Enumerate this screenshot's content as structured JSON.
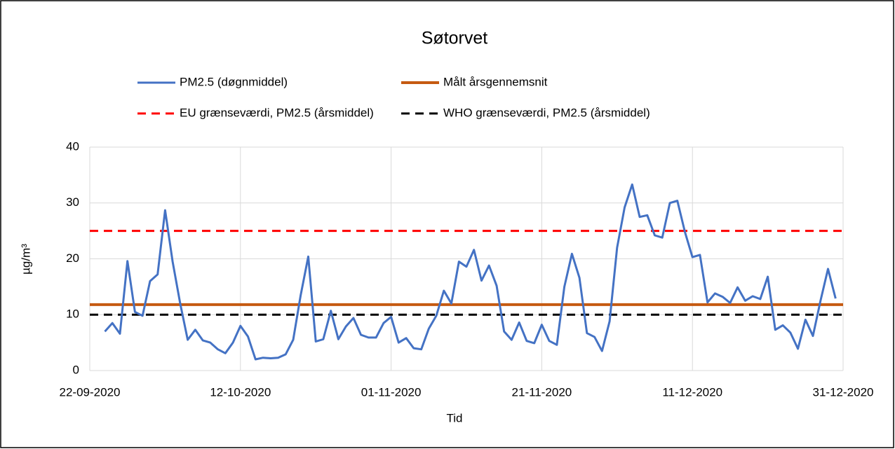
{
  "chart_data": {
    "type": "line",
    "title": "Søtorvet",
    "xlabel": "Tid",
    "ylabel": "µg/m³",
    "x": [
      "24-09-2020",
      "25-09-2020",
      "26-09-2020",
      "27-09-2020",
      "28-09-2020",
      "29-09-2020",
      "30-09-2020",
      "01-10-2020",
      "02-10-2020",
      "03-10-2020",
      "04-10-2020",
      "05-10-2020",
      "06-10-2020",
      "07-10-2020",
      "08-10-2020",
      "09-10-2020",
      "10-10-2020",
      "11-10-2020",
      "12-10-2020",
      "13-10-2020",
      "14-10-2020",
      "15-10-2020",
      "16-10-2020",
      "17-10-2020",
      "18-10-2020",
      "19-10-2020",
      "20-10-2020",
      "21-10-2020",
      "22-10-2020",
      "23-10-2020",
      "24-10-2020",
      "25-10-2020",
      "26-10-2020",
      "27-10-2020",
      "28-10-2020",
      "29-10-2020",
      "30-10-2020",
      "31-10-2020",
      "01-11-2020",
      "02-11-2020",
      "03-11-2020",
      "04-11-2020",
      "05-11-2020",
      "06-11-2020",
      "07-11-2020",
      "08-11-2020",
      "09-11-2020",
      "10-11-2020",
      "11-11-2020",
      "12-11-2020",
      "13-11-2020",
      "14-11-2020",
      "15-11-2020",
      "16-11-2020",
      "17-11-2020",
      "18-11-2020",
      "19-11-2020",
      "20-11-2020",
      "21-11-2020",
      "22-11-2020",
      "23-11-2020",
      "24-11-2020",
      "25-11-2020",
      "26-11-2020",
      "27-11-2020",
      "28-11-2020",
      "29-11-2020",
      "30-11-2020",
      "01-12-2020",
      "02-12-2020",
      "03-12-2020",
      "04-12-2020",
      "05-12-2020",
      "06-12-2020",
      "07-12-2020",
      "08-12-2020",
      "09-12-2020",
      "10-12-2020",
      "11-12-2020",
      "12-12-2020",
      "13-12-2020",
      "14-12-2020",
      "15-12-2020",
      "16-12-2020",
      "17-12-2020",
      "18-12-2020",
      "19-12-2020",
      "20-12-2020",
      "21-12-2020",
      "22-12-2020",
      "23-12-2020",
      "24-12-2020",
      "25-12-2020",
      "26-12-2020",
      "27-12-2020",
      "28-12-2020",
      "29-12-2020",
      "30-12-2020"
    ],
    "series": [
      {
        "name": "PM2.5 (døgnmiddel)",
        "color": "#4472c4",
        "values": [
          7.0,
          8.5,
          6.6,
          19.6,
          10.5,
          9.8,
          16.0,
          17.2,
          28.7,
          19.5,
          12.0,
          5.5,
          7.3,
          5.4,
          5.0,
          3.8,
          3.1,
          5.0,
          8.0,
          6.1,
          2.0,
          2.3,
          2.2,
          2.3,
          2.9,
          5.5,
          13.5,
          20.4,
          5.2,
          5.6,
          10.7,
          5.6,
          7.9,
          9.4,
          6.4,
          5.9,
          5.9,
          8.5,
          9.6,
          5.0,
          5.8,
          4.0,
          3.8,
          7.5,
          9.8,
          14.3,
          12.0,
          19.5,
          18.6,
          21.6,
          16.1,
          18.8,
          15.2,
          7.0,
          5.5,
          8.6,
          5.3,
          4.9,
          8.2,
          5.3,
          4.6,
          15.0,
          20.9,
          16.6,
          6.7,
          6.0,
          3.5,
          8.8,
          22.0,
          29.2,
          33.3,
          27.5,
          27.8,
          24.2,
          23.8,
          30.0,
          30.4,
          24.8,
          20.3,
          20.7,
          12.2,
          13.8,
          13.2,
          12.1,
          14.9,
          12.5,
          13.3,
          12.8,
          16.8,
          7.3,
          8.1,
          6.8,
          3.9,
          9.1,
          6.2,
          12.5,
          18.2,
          12.9
        ]
      }
    ],
    "reference_lines": [
      {
        "name": "Målt årsgennemsnit",
        "color": "#c55a11",
        "value": 11.8,
        "dashed": false
      },
      {
        "name": "EU grænseværdi, PM2.5 (årsmiddel)",
        "color": "#ff0000",
        "value": 25,
        "dashed": true
      },
      {
        "name": "WHO grænseværdi, PM2.5 (årsmiddel)",
        "color": "#000000",
        "value": 10,
        "dashed": true
      }
    ],
    "xlim": [
      "22-09-2020",
      "31-12-2020"
    ],
    "xticks": [
      "22-09-2020",
      "12-10-2020",
      "01-11-2020",
      "21-11-2020",
      "11-12-2020",
      "31-12-2020"
    ],
    "ylim": [
      0,
      40
    ],
    "yticks": [
      0,
      10,
      20,
      30,
      40
    ],
    "grid": true
  }
}
